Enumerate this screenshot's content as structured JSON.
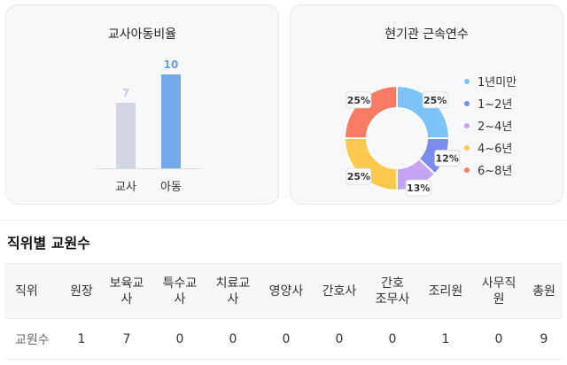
{
  "ratio_card": {
    "title": "교사아동비율",
    "bars": [
      {
        "label": "교사",
        "value": 7,
        "value_text": "7",
        "color": "#d1d6e2",
        "value_color": "#c7ccd8"
      },
      {
        "label": "아동",
        "value": 10,
        "value_text": "10",
        "color": "#74a8e8",
        "value_color": "#6b9fe4"
      }
    ],
    "max": 10
  },
  "tenure_card": {
    "title": "현기관 근속연수",
    "segments": [
      {
        "label": "1년미만",
        "percent": 25,
        "percent_text": "25%",
        "color": "#7cc4f8"
      },
      {
        "label": "1~2년",
        "percent": 12,
        "percent_text": "12%",
        "color": "#7b8cf0"
      },
      {
        "label": "2~4년",
        "percent": 13,
        "percent_text": "13%",
        "color": "#c5a4f3"
      },
      {
        "label": "4~6년",
        "percent": 25,
        "percent_text": "25%",
        "color": "#fcc94e"
      },
      {
        "label": "6~8년",
        "percent": 25,
        "percent_text": "25%",
        "color": "#f97b64"
      }
    ]
  },
  "staff_section": {
    "title": "직위별 교원수",
    "row_header": "직위",
    "row_label": "교원수",
    "columns": [
      {
        "header_lines": [
          "원장"
        ],
        "value": "1"
      },
      {
        "header_lines": [
          "보육교",
          "사"
        ],
        "value": "7"
      },
      {
        "header_lines": [
          "특수교",
          "사"
        ],
        "value": "0"
      },
      {
        "header_lines": [
          "치료교",
          "사"
        ],
        "value": "0"
      },
      {
        "header_lines": [
          "영양사"
        ],
        "value": "0"
      },
      {
        "header_lines": [
          "간호사"
        ],
        "value": "0"
      },
      {
        "header_lines": [
          "간호",
          "조무사"
        ],
        "value": "0"
      },
      {
        "header_lines": [
          "조리원"
        ],
        "value": "1"
      },
      {
        "header_lines": [
          "사무직",
          "원"
        ],
        "value": "0"
      },
      {
        "header_lines": [
          "총원"
        ],
        "value": "9"
      }
    ]
  }
}
